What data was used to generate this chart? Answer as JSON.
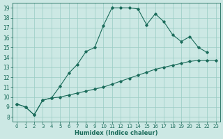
{
  "xlabel": "Humidex (Indice chaleur)",
  "background_color": "#cce8e4",
  "grid_color": "#99ccc4",
  "line_color": "#1a6b5a",
  "xlim": [
    -0.5,
    23.5
  ],
  "ylim": [
    7.5,
    19.5
  ],
  "yticks": [
    8,
    9,
    10,
    11,
    12,
    13,
    14,
    15,
    16,
    17,
    18,
    19
  ],
  "xticks": [
    0,
    1,
    2,
    3,
    4,
    5,
    6,
    7,
    8,
    9,
    10,
    11,
    12,
    13,
    14,
    15,
    16,
    17,
    18,
    19,
    20,
    21,
    22,
    23
  ],
  "line1_x": [
    0,
    1,
    2,
    3,
    4,
    5,
    6,
    7,
    8,
    9,
    10,
    11,
    12,
    13,
    14,
    15,
    16,
    17,
    18,
    19,
    20,
    21,
    22
  ],
  "line1_y": [
    9.3,
    9.0,
    8.2,
    9.7,
    9.9,
    11.1,
    12.4,
    13.3,
    14.6,
    15.0,
    17.2,
    19.0,
    19.0,
    19.0,
    18.9,
    17.3,
    18.4,
    17.6,
    16.3,
    15.6,
    16.1,
    15.0,
    14.5
  ],
  "line2_x": [
    0,
    1,
    2,
    3,
    4,
    5,
    6,
    7,
    8,
    9,
    10,
    11,
    12,
    13,
    14,
    15,
    16,
    17,
    18,
    19,
    20,
    21,
    22,
    23
  ],
  "line2_y": [
    9.3,
    9.0,
    8.2,
    9.7,
    9.9,
    10.0,
    10.2,
    10.4,
    10.6,
    10.8,
    11.0,
    11.3,
    11.6,
    11.9,
    12.2,
    12.5,
    12.8,
    13.0,
    13.2,
    13.4,
    13.6,
    13.7,
    13.7,
    13.7
  ]
}
